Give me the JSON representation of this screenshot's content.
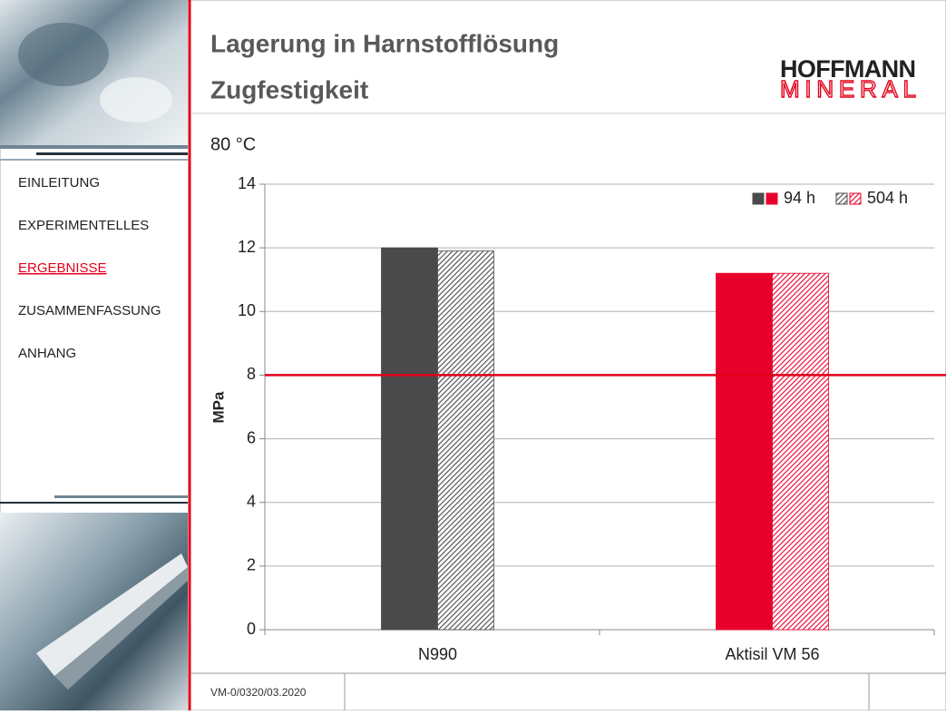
{
  "header": {
    "title_line1": "Lagerung in Harnstofflösung",
    "title_line2": "Zugfestigkeit"
  },
  "logo": {
    "line1": "HOFFMANN",
    "line2": "MINERAL"
  },
  "navigation": {
    "items": [
      "EINLEITUNG",
      "EXPERIMENTELLES",
      "ERGEBNISSE",
      "ZUSAMMENFASSUNG",
      "ANHANG"
    ],
    "active": 2
  },
  "footer": {
    "code": "VM-0/0320/03.2020"
  },
  "chart_data": {
    "type": "bar",
    "subtitle": "80 °C",
    "ylabel": "MPa",
    "categories": [
      "N990",
      "Aktisil VM 56"
    ],
    "category_colors": [
      "#4a4a4a",
      "#e8002d"
    ],
    "series": [
      {
        "name": "94 h",
        "fill": "solid",
        "values": [
          12.0,
          11.2
        ]
      },
      {
        "name": "504 h",
        "fill": "hatch",
        "values": [
          11.9,
          11.2
        ]
      }
    ],
    "ylim": [
      0,
      14
    ],
    "yticks": [
      0,
      2,
      4,
      6,
      8,
      10,
      12,
      14
    ],
    "grid": true,
    "reference_line": {
      "value": 8,
      "color": "#e2001a"
    },
    "legend": "upper right"
  }
}
